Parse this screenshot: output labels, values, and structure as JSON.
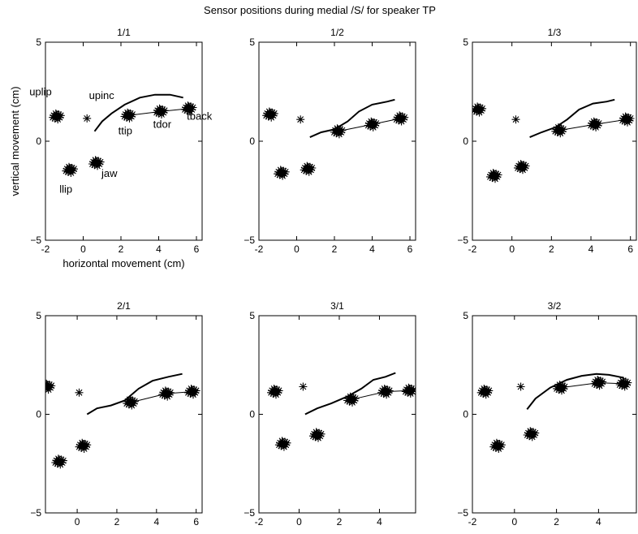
{
  "figure": {
    "title": "Sensor positions during medial /S/ for speaker TP"
  },
  "chart_data": [
    {
      "type": "scatter",
      "title": "1/1",
      "xlabel": "horizontal movement (cm)",
      "ylabel": "vertical movement (cm)",
      "xlim": [
        -2,
        6.3
      ],
      "ylim": [
        -5,
        5
      ],
      "xticks": [
        -2,
        0,
        2,
        4,
        6
      ],
      "yticks": [
        -5,
        0,
        5
      ],
      "grid": false,
      "sensors": [
        {
          "name": "uplip",
          "x": -1.4,
          "y": 1.25
        },
        {
          "name": "upinc",
          "x": 0.2,
          "y": 1.15
        },
        {
          "name": "llip",
          "x": -0.7,
          "y": -1.45
        },
        {
          "name": "jaw",
          "x": 0.7,
          "y": -1.1
        },
        {
          "name": "ttip",
          "x": 2.4,
          "y": 1.3
        },
        {
          "name": "tdor",
          "x": 4.1,
          "y": 1.5
        },
        {
          "name": "tback",
          "x": 5.6,
          "y": 1.65
        }
      ],
      "palate": [
        [
          0.6,
          0.5
        ],
        [
          1.0,
          1.0
        ],
        [
          1.5,
          1.4
        ],
        [
          2.2,
          1.85
        ],
        [
          3.0,
          2.2
        ],
        [
          3.8,
          2.35
        ],
        [
          4.6,
          2.35
        ],
        [
          5.3,
          2.2
        ]
      ]
    },
    {
      "type": "scatter",
      "title": "1/2",
      "xlim": [
        -2,
        6.3
      ],
      "ylim": [
        -5,
        5
      ],
      "xticks": [
        -2,
        0,
        2,
        4,
        6
      ],
      "yticks": [
        -5,
        0,
        5
      ],
      "grid": false,
      "sensors": [
        {
          "name": "uplip",
          "x": -1.4,
          "y": 1.35
        },
        {
          "name": "upinc",
          "x": 0.2,
          "y": 1.1
        },
        {
          "name": "llip",
          "x": -0.8,
          "y": -1.6
        },
        {
          "name": "jaw",
          "x": 0.6,
          "y": -1.4
        },
        {
          "name": "ttip",
          "x": 2.2,
          "y": 0.5
        },
        {
          "name": "tdor",
          "x": 4.0,
          "y": 0.85
        },
        {
          "name": "tback",
          "x": 5.5,
          "y": 1.15
        }
      ],
      "palate": [
        [
          0.7,
          0.2
        ],
        [
          1.3,
          0.45
        ],
        [
          2.0,
          0.6
        ],
        [
          2.7,
          1.0
        ],
        [
          3.3,
          1.5
        ],
        [
          4.0,
          1.85
        ],
        [
          4.8,
          2.0
        ],
        [
          5.2,
          2.1
        ]
      ]
    },
    {
      "type": "scatter",
      "title": "1/3",
      "xlim": [
        -2,
        6.3
      ],
      "ylim": [
        -5,
        5
      ],
      "xticks": [
        -2,
        0,
        2,
        4,
        6
      ],
      "yticks": [
        -5,
        0,
        5
      ],
      "grid": false,
      "sensors": [
        {
          "name": "uplip",
          "x": -1.7,
          "y": 1.6
        },
        {
          "name": "upinc",
          "x": 0.2,
          "y": 1.1
        },
        {
          "name": "llip",
          "x": -0.9,
          "y": -1.75
        },
        {
          "name": "jaw",
          "x": 0.5,
          "y": -1.3
        },
        {
          "name": "ttip",
          "x": 2.4,
          "y": 0.55
        },
        {
          "name": "tdor",
          "x": 4.2,
          "y": 0.85
        },
        {
          "name": "tback",
          "x": 5.8,
          "y": 1.1
        }
      ],
      "palate": [
        [
          0.9,
          0.2
        ],
        [
          1.5,
          0.45
        ],
        [
          2.2,
          0.7
        ],
        [
          2.8,
          1.1
        ],
        [
          3.4,
          1.6
        ],
        [
          4.1,
          1.9
        ],
        [
          4.8,
          2.0
        ],
        [
          5.2,
          2.1
        ]
      ]
    },
    {
      "type": "scatter",
      "title": "2/1",
      "xlim": [
        -1.6,
        6.3
      ],
      "ylim": [
        -5,
        5
      ],
      "xticks": [
        0,
        2,
        4,
        6
      ],
      "yticks": [
        -5,
        0,
        5
      ],
      "grid": false,
      "sensors": [
        {
          "name": "uplip",
          "x": -1.5,
          "y": 1.4
        },
        {
          "name": "upinc",
          "x": 0.1,
          "y": 1.1
        },
        {
          "name": "llip",
          "x": -0.9,
          "y": -2.4
        },
        {
          "name": "jaw",
          "x": 0.3,
          "y": -1.6
        },
        {
          "name": "ttip",
          "x": 2.7,
          "y": 0.6
        },
        {
          "name": "tdor",
          "x": 4.5,
          "y": 1.05
        },
        {
          "name": "tback",
          "x": 5.8,
          "y": 1.15
        }
      ],
      "palate": [
        [
          0.5,
          0.0
        ],
        [
          1.0,
          0.3
        ],
        [
          1.7,
          0.45
        ],
        [
          2.4,
          0.7
        ],
        [
          3.1,
          1.3
        ],
        [
          3.8,
          1.7
        ],
        [
          4.6,
          1.9
        ],
        [
          5.3,
          2.05
        ]
      ]
    },
    {
      "type": "scatter",
      "title": "3/1",
      "xlim": [
        -2,
        5.8
      ],
      "ylim": [
        -5,
        5
      ],
      "xticks": [
        -2,
        0,
        2,
        4
      ],
      "yticks": [
        -5,
        0,
        5
      ],
      "grid": false,
      "sensors": [
        {
          "name": "uplip",
          "x": -1.2,
          "y": 1.15
        },
        {
          "name": "upinc",
          "x": 0.2,
          "y": 1.4
        },
        {
          "name": "llip",
          "x": -0.8,
          "y": -1.5
        },
        {
          "name": "jaw",
          "x": 0.9,
          "y": -1.05
        },
        {
          "name": "ttip",
          "x": 2.6,
          "y": 0.75
        },
        {
          "name": "tdor",
          "x": 4.3,
          "y": 1.15
        },
        {
          "name": "tback",
          "x": 5.5,
          "y": 1.2
        }
      ],
      "palate": [
        [
          0.3,
          0.0
        ],
        [
          0.9,
          0.3
        ],
        [
          1.6,
          0.55
        ],
        [
          2.4,
          0.9
        ],
        [
          3.1,
          1.3
        ],
        [
          3.7,
          1.75
        ],
        [
          4.3,
          1.9
        ],
        [
          4.8,
          2.1
        ]
      ]
    },
    {
      "type": "scatter",
      "title": "3/2",
      "xlim": [
        -2,
        5.8
      ],
      "ylim": [
        -5,
        5
      ],
      "xticks": [
        -2,
        0,
        2,
        4
      ],
      "yticks": [
        -5,
        0,
        5
      ],
      "grid": false,
      "sensors": [
        {
          "name": "uplip",
          "x": -1.4,
          "y": 1.15
        },
        {
          "name": "upinc",
          "x": 0.3,
          "y": 1.4
        },
        {
          "name": "llip",
          "x": -0.8,
          "y": -1.6
        },
        {
          "name": "jaw",
          "x": 0.8,
          "y": -1.0
        },
        {
          "name": "ttip",
          "x": 2.2,
          "y": 1.35
        },
        {
          "name": "tdor",
          "x": 4.0,
          "y": 1.6
        },
        {
          "name": "tback",
          "x": 5.2,
          "y": 1.55
        }
      ],
      "palate": [
        [
          0.6,
          0.25
        ],
        [
          1.0,
          0.8
        ],
        [
          1.7,
          1.35
        ],
        [
          2.5,
          1.75
        ],
        [
          3.2,
          1.95
        ],
        [
          3.9,
          2.05
        ],
        [
          4.5,
          2.0
        ],
        [
          5.2,
          1.85
        ]
      ]
    }
  ]
}
